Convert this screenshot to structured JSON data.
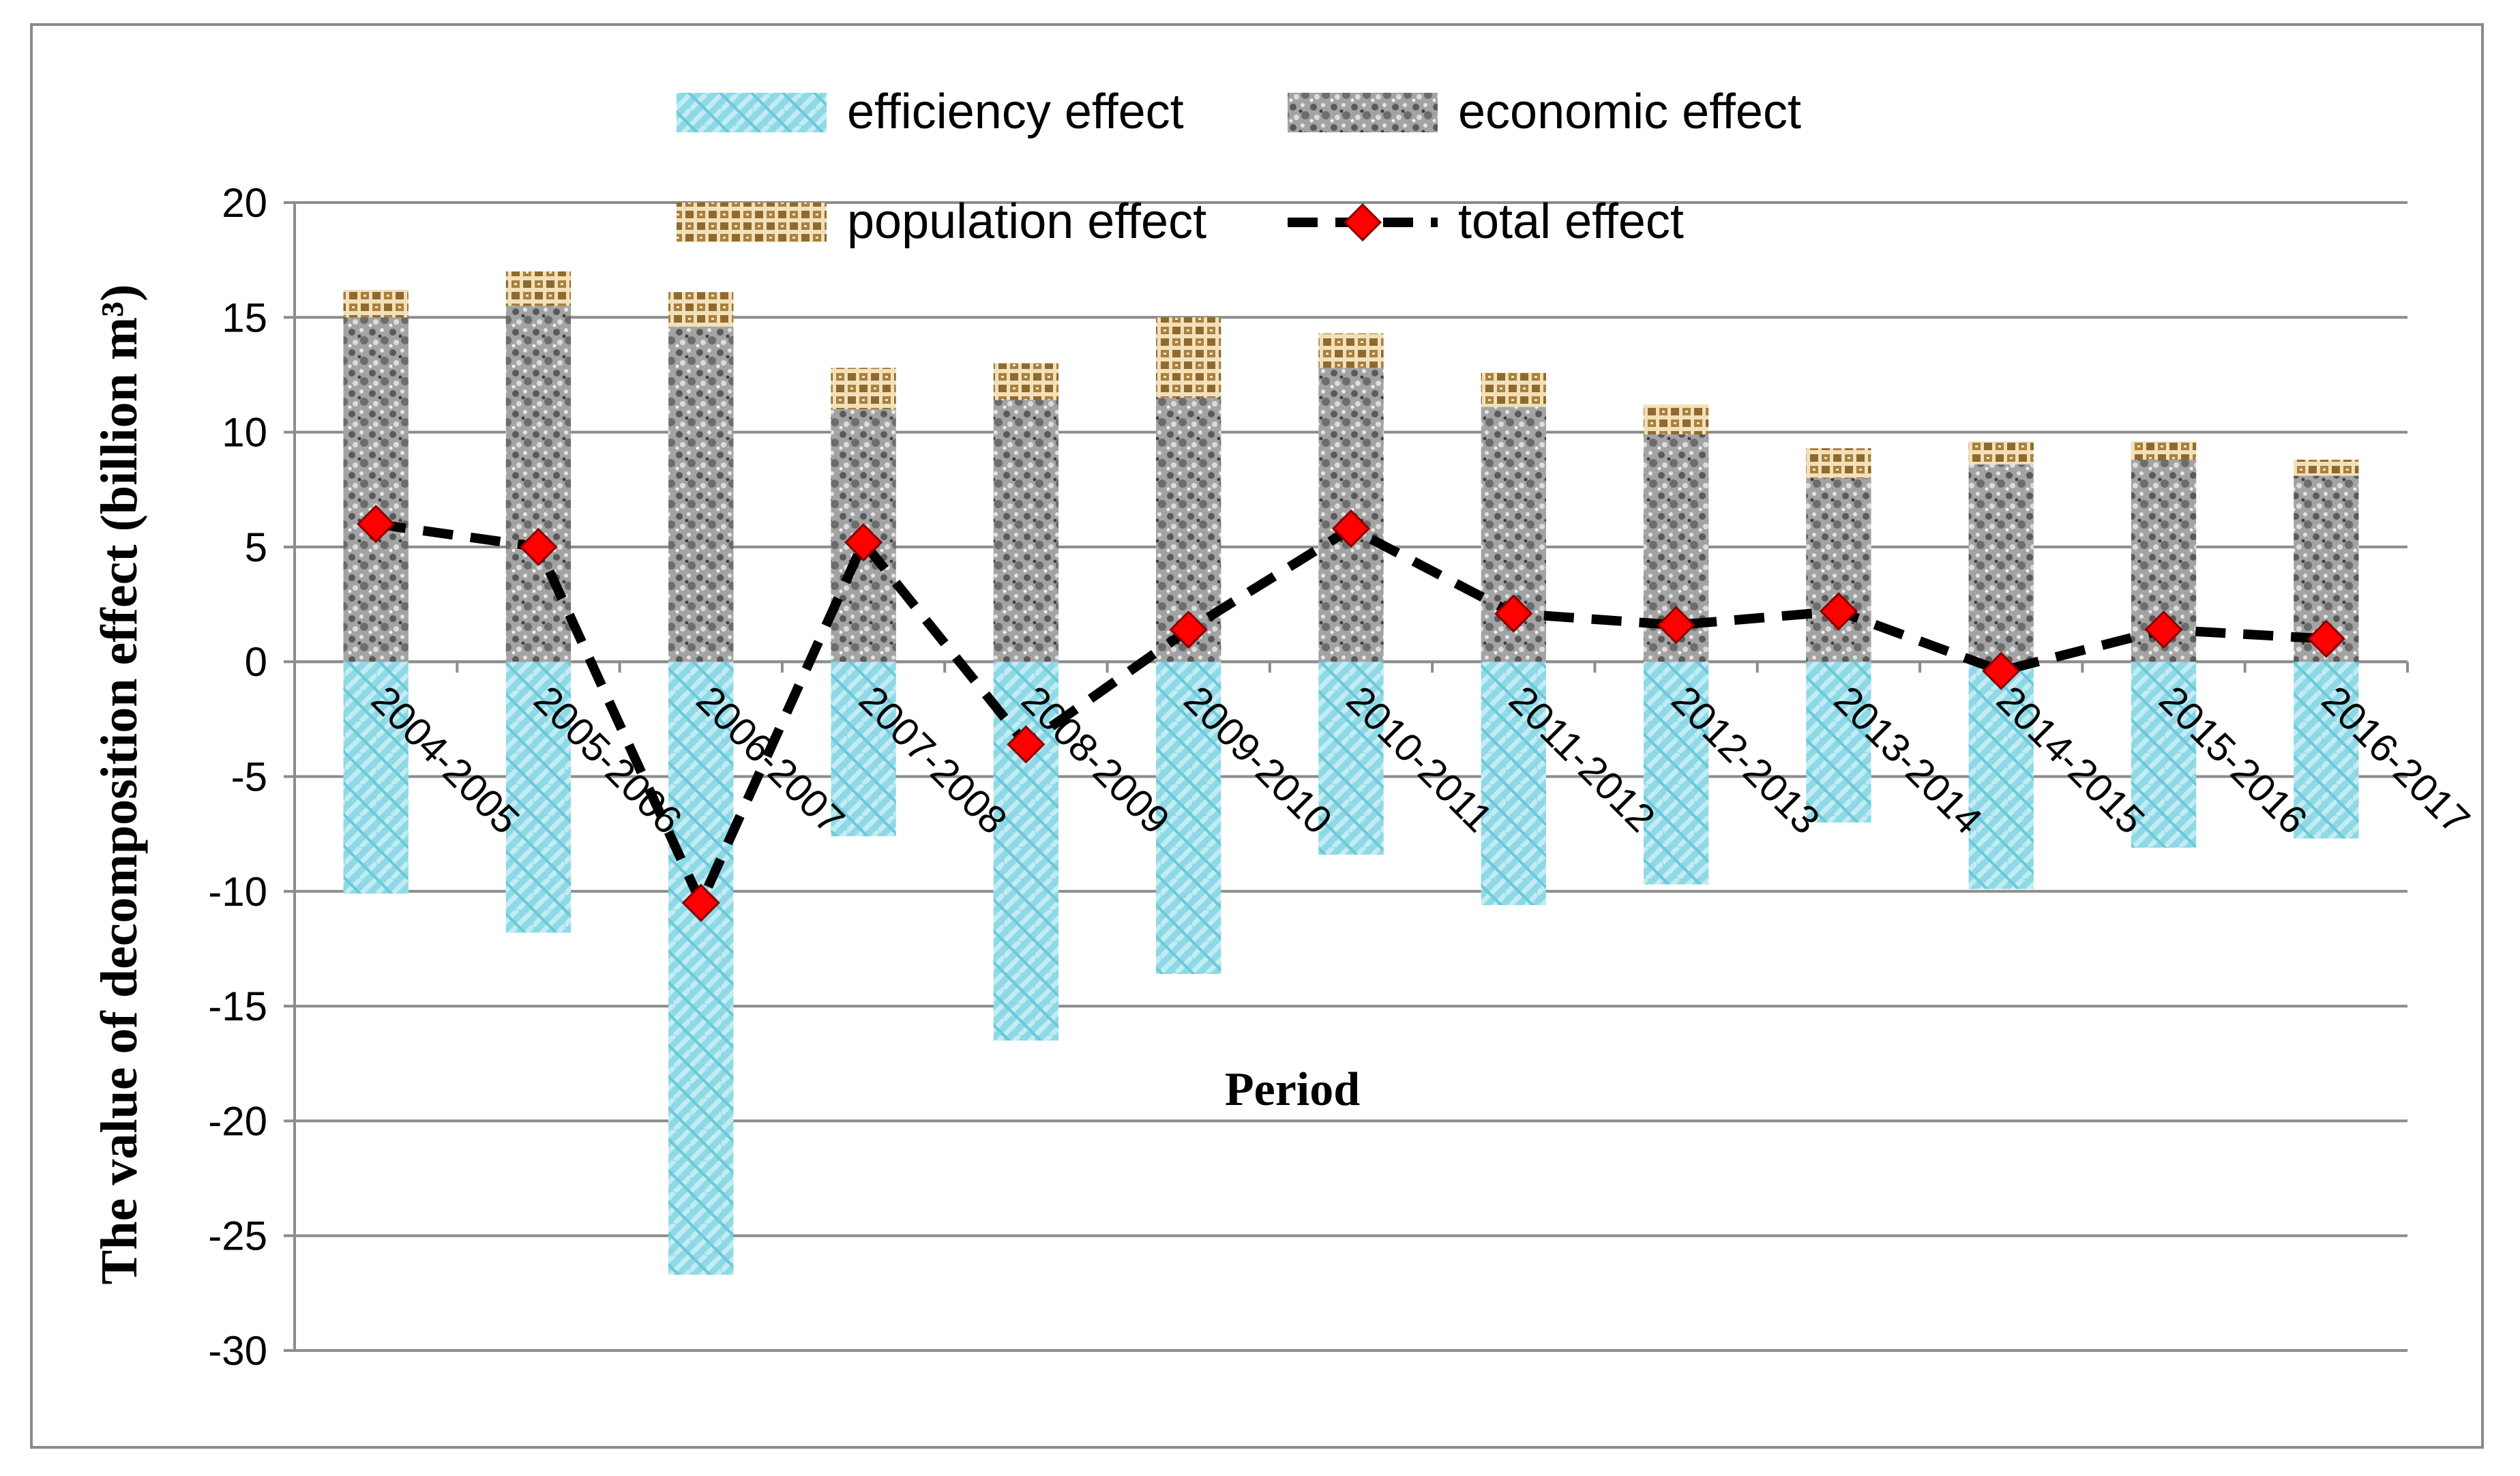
{
  "chart_data": {
    "type": "bar",
    "stacked": true,
    "title": "",
    "xlabel": "Period",
    "ylabel": "The value of decomposition effect (billion m³)",
    "ylim": [
      -30,
      20
    ],
    "yticks": [
      20,
      15,
      10,
      5,
      0,
      -5,
      -10,
      -15,
      -20,
      -25,
      -30
    ],
    "grid": true,
    "categories": [
      "2004-2005",
      "2005-2006",
      "2006-2007",
      "2007-2008",
      "2008-2009",
      "2009-2010",
      "2010-2011",
      "2011-2012",
      "2012-2013",
      "2013-2014",
      "2014-2015",
      "2015-2016",
      "2016-2017"
    ],
    "series": [
      {
        "name": "efficiency effect",
        "type": "bar",
        "color": "#7fd3e2",
        "values": [
          -10.1,
          -11.8,
          -26.7,
          -7.6,
          -16.5,
          -13.6,
          -8.4,
          -10.6,
          -9.7,
          -7.0,
          -9.9,
          -8.1,
          -7.7
        ]
      },
      {
        "name": "economic effect",
        "type": "bar",
        "color": "#9c9c9c",
        "values": [
          15.0,
          15.5,
          14.6,
          11.0,
          11.4,
          11.5,
          12.8,
          11.1,
          9.9,
          8.0,
          8.6,
          8.8,
          8.1
        ]
      },
      {
        "name": "population effect",
        "type": "bar",
        "color": "#d4b27a",
        "values": [
          1.2,
          1.5,
          1.5,
          1.8,
          1.6,
          3.5,
          1.5,
          1.5,
          1.3,
          1.3,
          1.0,
          0.8,
          0.7
        ]
      },
      {
        "name": "total effect",
        "type": "line",
        "color": "#ff0000",
        "line_color": "#000000",
        "values": [
          6.0,
          5.0,
          -10.5,
          5.2,
          -3.6,
          1.4,
          5.8,
          2.1,
          1.6,
          2.2,
          -0.4,
          1.4,
          1.0
        ]
      }
    ],
    "legend": {
      "position": "top",
      "labels": [
        "efficiency effect",
        "economic effect",
        "population effect",
        "total effect"
      ]
    }
  }
}
